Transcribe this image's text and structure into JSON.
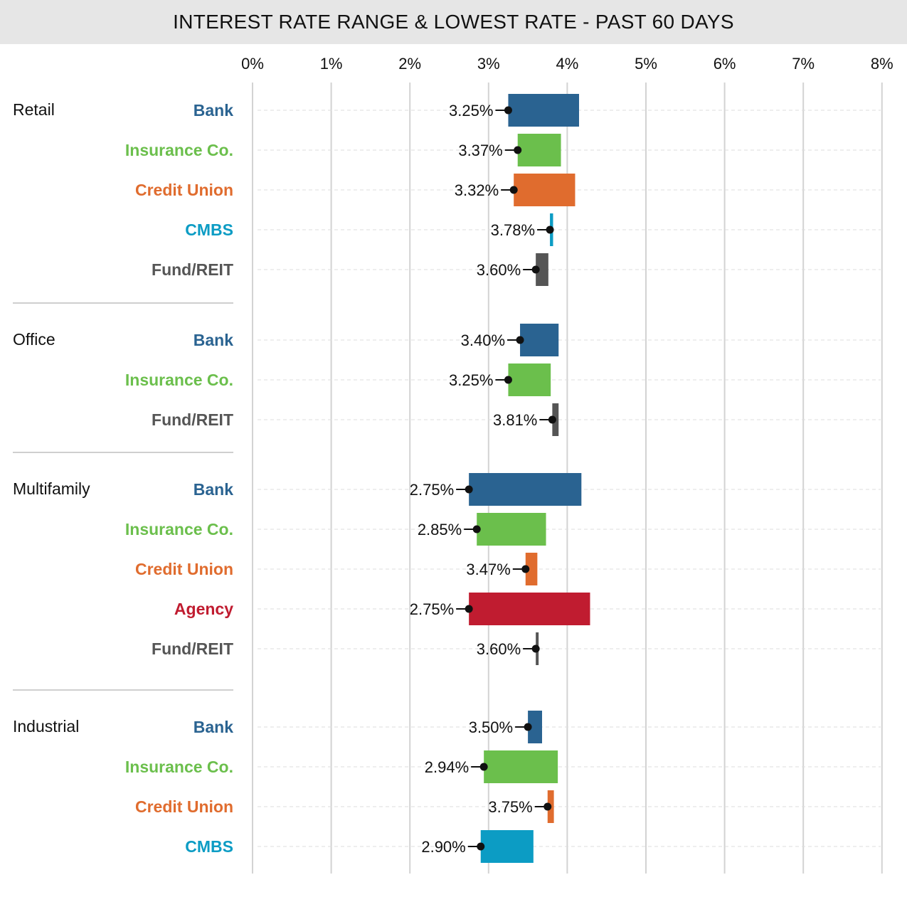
{
  "chart_data": {
    "type": "bar",
    "title": "INTEREST RATE RANGE & LOWEST RATE - PAST 60 DAYS",
    "xlim": [
      0,
      8
    ],
    "x_ticks": [
      "0%",
      "1%",
      "2%",
      "3%",
      "4%",
      "5%",
      "6%",
      "7%",
      "8%"
    ],
    "grid": true,
    "colors": {
      "Bank": "#2a6391",
      "Insurance Co.": "#6bbf4c",
      "Credit Union": "#e06c2e",
      "CMBS": "#0c9cc4",
      "Fund/REIT": "#555555",
      "Agency": "#c01c30"
    },
    "groups": [
      {
        "name": "Retail",
        "rows": [
          {
            "lender": "Bank",
            "low": 3.25,
            "high": 4.15,
            "label": "3.25%"
          },
          {
            "lender": "Insurance Co.",
            "low": 3.37,
            "high": 3.92,
            "label": "3.37%"
          },
          {
            "lender": "Credit Union",
            "low": 3.32,
            "high": 4.1,
            "label": "3.32%"
          },
          {
            "lender": "CMBS",
            "low": 3.78,
            "high": 3.82,
            "label": "3.78%"
          },
          {
            "lender": "Fund/REIT",
            "low": 3.6,
            "high": 3.76,
            "label": "3.60%"
          }
        ]
      },
      {
        "name": "Office",
        "rows": [
          {
            "lender": "Bank",
            "low": 3.4,
            "high": 3.89,
            "label": "3.40%"
          },
          {
            "lender": "Insurance Co.",
            "low": 3.25,
            "high": 3.79,
            "label": "3.25%"
          },
          {
            "lender": "Fund/REIT",
            "low": 3.81,
            "high": 3.89,
            "label": "3.81%"
          }
        ]
      },
      {
        "name": "Multifamily",
        "rows": [
          {
            "lender": "Bank",
            "low": 2.75,
            "high": 4.18,
            "label": "2.75%"
          },
          {
            "lender": "Insurance Co.",
            "low": 2.85,
            "high": 3.73,
            "label": "2.85%"
          },
          {
            "lender": "Credit Union",
            "low": 3.47,
            "high": 3.62,
            "label": "3.47%"
          },
          {
            "lender": "Agency",
            "low": 2.75,
            "high": 4.29,
            "label": "2.75%"
          },
          {
            "lender": "Fund/REIT",
            "low": 3.6,
            "high": 3.62,
            "label": "3.60%"
          }
        ]
      },
      {
        "name": "Industrial",
        "rows": [
          {
            "lender": "Bank",
            "low": 3.5,
            "high": 3.68,
            "label": "3.50%"
          },
          {
            "lender": "Insurance Co.",
            "low": 2.94,
            "high": 3.88,
            "label": "2.94%"
          },
          {
            "lender": "Credit Union",
            "low": 3.75,
            "high": 3.83,
            "label": "3.75%"
          },
          {
            "lender": "CMBS",
            "low": 2.9,
            "high": 3.57,
            "label": "2.90%"
          }
        ]
      }
    ]
  }
}
